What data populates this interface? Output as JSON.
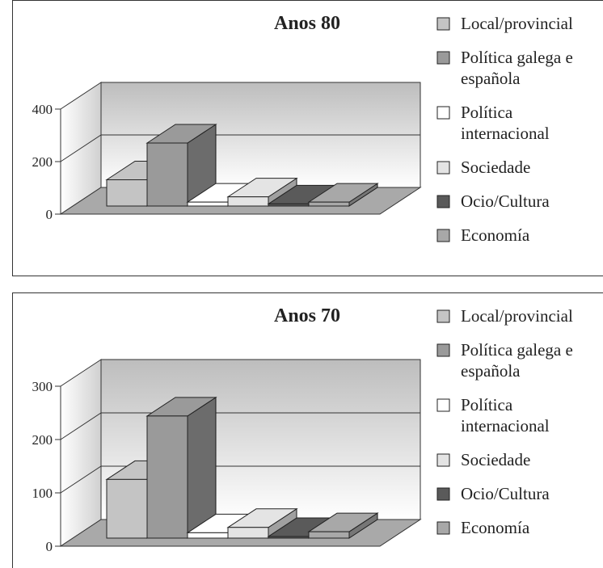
{
  "chart_data": [
    {
      "type": "bar3d",
      "title": "Anos 80",
      "categories": [
        "Local/provincial",
        "Política galega e española",
        "Política internacional",
        "Sociedade",
        "Ocio/Cultura",
        "Economía"
      ],
      "values": [
        100,
        240,
        15,
        35,
        8,
        15
      ],
      "colors": [
        "#c4c4c4",
        "#9a9a9a",
        "#ffffff",
        "#e4e4e4",
        "#5a5a5a",
        "#a8a8a8"
      ],
      "ylim": [
        0,
        400
      ],
      "yticks": [
        0,
        200,
        400
      ],
      "grid": true
    },
    {
      "type": "bar3d",
      "title": "Anos 70",
      "categories": [
        "Local/provincial",
        "Política galega e española",
        "Política internacional",
        "Sociedade",
        "Ocio/Cultura",
        "Economía"
      ],
      "values": [
        110,
        229,
        10,
        20,
        3,
        12
      ],
      "colors": [
        "#c4c4c4",
        "#9a9a9a",
        "#ffffff",
        "#e4e4e4",
        "#5a5a5a",
        "#a8a8a8"
      ],
      "ylim": [
        0,
        300
      ],
      "yticks": [
        0,
        100,
        200,
        300
      ],
      "grid": true
    }
  ]
}
